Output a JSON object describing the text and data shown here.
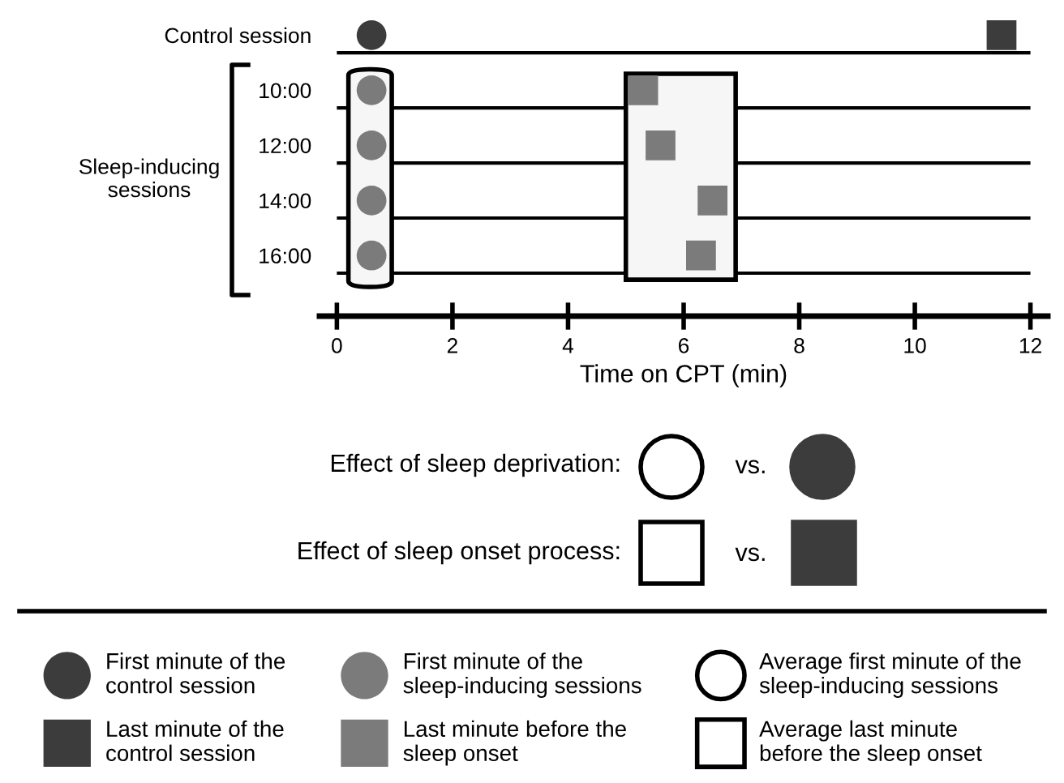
{
  "chart_data": {
    "type": "scatter",
    "orientation": "horizontal",
    "categories": [
      "Control session",
      "10:00",
      "12:00",
      "14:00",
      "16:00"
    ],
    "xlabel": "Time on CPT (min)",
    "xlim": [
      -0.3,
      12.3
    ],
    "xticks": [
      0,
      2,
      4,
      6,
      8,
      10,
      12
    ],
    "grid": "y",
    "legend": "bottom",
    "series": [
      {
        "name": "First minute of the\ncontrol session",
        "color": "#3c3c3c",
        "marker": "circle",
        "values": [
          0.6,
          null,
          null,
          null,
          null
        ]
      },
      {
        "name": "Last minute of the\ncontrol session",
        "color": "#3c3c3c",
        "marker": "square",
        "values": [
          11.5,
          null,
          null,
          null,
          null
        ]
      },
      {
        "name": "First minute of the\nsleep-inducing sessions",
        "color": "#7b7b7b",
        "marker": "circle",
        "values": [
          null,
          0.6,
          0.6,
          0.6,
          0.6
        ]
      },
      {
        "name": "Last minute before the\nsleep onset",
        "color": "#7b7b7b",
        "marker": "square",
        "values": [
          null,
          5.3,
          5.6,
          6.5,
          6.3
        ]
      }
    ],
    "bands": [
      {
        "axis": "x",
        "from": 0.2,
        "to": 0.95,
        "label": "Average first minute of the\nsleep-inducing sessions",
        "color": "#000000"
      },
      {
        "axis": "x",
        "from": 5.0,
        "to": 6.9,
        "label": "Average last minute\nbefore the sleep onset",
        "color": "#000000"
      }
    ],
    "annotations": [
      "Sleep-inducing\nsessions",
      "Effect of sleep deprivation:",
      "vs.",
      "Effect of sleep onset process:",
      "vs."
    ]
  }
}
